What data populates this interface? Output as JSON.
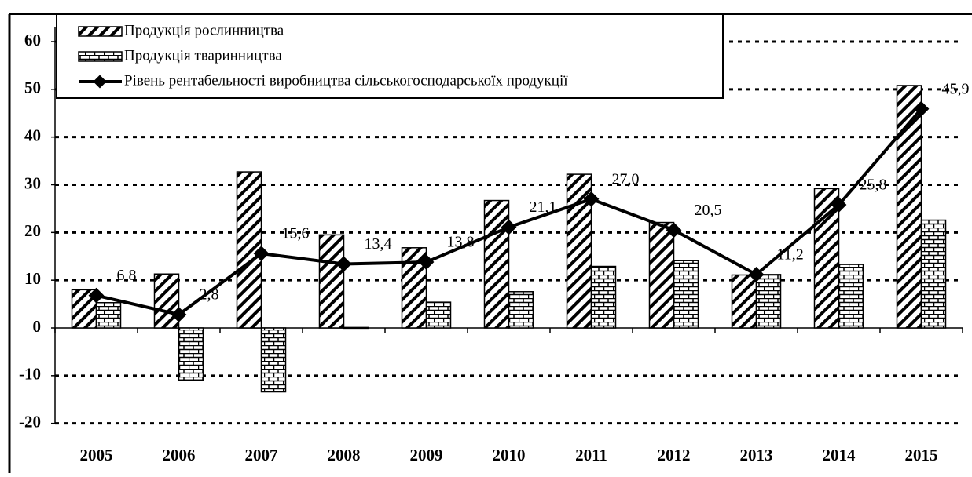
{
  "chart_data": {
    "type": "bar",
    "categories": [
      "2005",
      "2006",
      "2007",
      "2008",
      "2009",
      "2010",
      "2011",
      "2012",
      "2013",
      "2014",
      "2015"
    ],
    "series": [
      {
        "name": "Продукція рослинництва",
        "values": [
          8,
          11.3,
          32.7,
          19.5,
          16.8,
          26.7,
          32.2,
          22.1,
          11.1,
          29.2,
          50.8
        ]
      },
      {
        "name": "Продукція тваринництва",
        "values": [
          5.3,
          -10.9,
          -13.4,
          0.1,
          5.4,
          7.6,
          12.9,
          14.1,
          11.2,
          13.3,
          22.6
        ]
      },
      {
        "name": "Рівень рентабельності виробництва сільськогосподарськоїх продукції",
        "type": "line",
        "color": "#000000",
        "values": [
          6.8,
          2.8,
          15.6,
          13.4,
          13.8,
          21.1,
          27.0,
          20.5,
          11.2,
          25.8,
          45.9
        ],
        "value_labels": [
          "6,8",
          "2,8",
          "15,6",
          "13,4",
          "13,8",
          "21,1",
          "27,0",
          "20,5",
          "11,2",
          "25,8",
          "45,9"
        ]
      }
    ],
    "ylim": [
      -20,
      63
    ],
    "yticks": [
      -20,
      -10,
      0,
      10,
      20,
      30,
      40,
      50,
      60
    ],
    "grid": true
  }
}
